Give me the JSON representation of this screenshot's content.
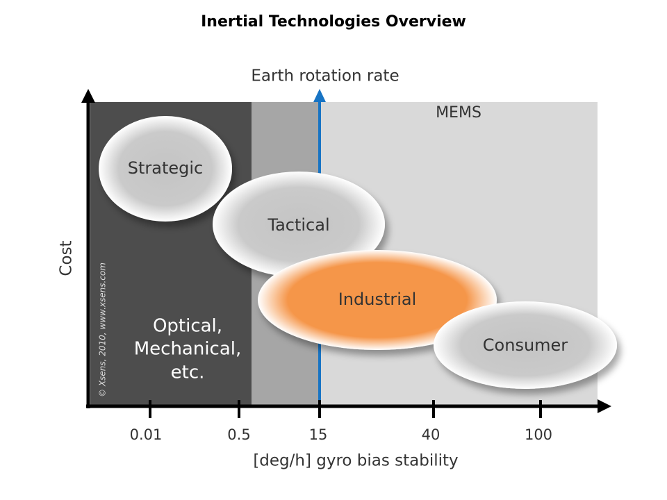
{
  "title": "Inertial Technologies Overview",
  "top_label": "Earth rotation rate",
  "y_axis_label": "Cost",
  "x_axis_label": "[deg/h] gyro bias stability",
  "x_tick_labels": [
    "0.01",
    "0.5",
    "15",
    "40",
    "100"
  ],
  "regions": {
    "mems": "MEMS",
    "optical": [
      "Optical,",
      "Mechanical,",
      "etc."
    ]
  },
  "categories": [
    "Strategic",
    "Tactical",
    "Industrial",
    "Consumer"
  ],
  "copyright": "© Xsens, 2010, www.xsens.com"
}
